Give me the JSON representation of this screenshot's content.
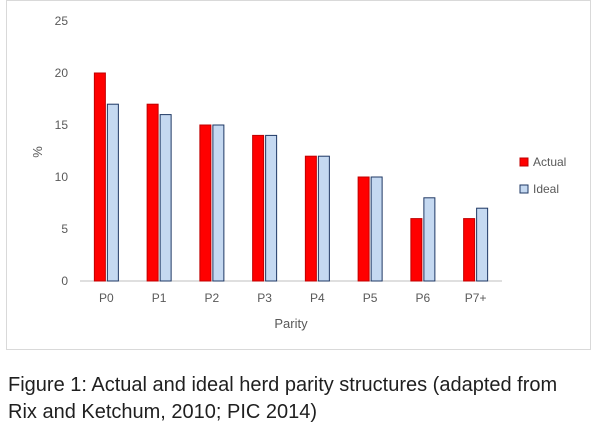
{
  "chart_data": {
    "type": "bar",
    "categories": [
      "P0",
      "P1",
      "P2",
      "P3",
      "P4",
      "P5",
      "P6",
      "P7+"
    ],
    "series": [
      {
        "name": "Actual",
        "values": [
          20,
          17,
          15,
          14,
          12,
          10,
          6,
          6
        ],
        "color": "#ff0000",
        "stroke": "#c00000"
      },
      {
        "name": "Ideal",
        "values": [
          17,
          16,
          15,
          14,
          12,
          10,
          8,
          7
        ],
        "color": "#c5d9f1",
        "stroke": "#1f3864"
      }
    ],
    "title": "",
    "xlabel": "Parity",
    "ylabel": "%",
    "ylim": [
      0,
      25
    ],
    "yticks": [
      0,
      5,
      10,
      15,
      20,
      25
    ],
    "grid": false,
    "legend": "right"
  },
  "caption": "Figure 1: Actual and ideal herd parity structures (adapted from Rix and Ketchum, 2010; PIC 2014)"
}
